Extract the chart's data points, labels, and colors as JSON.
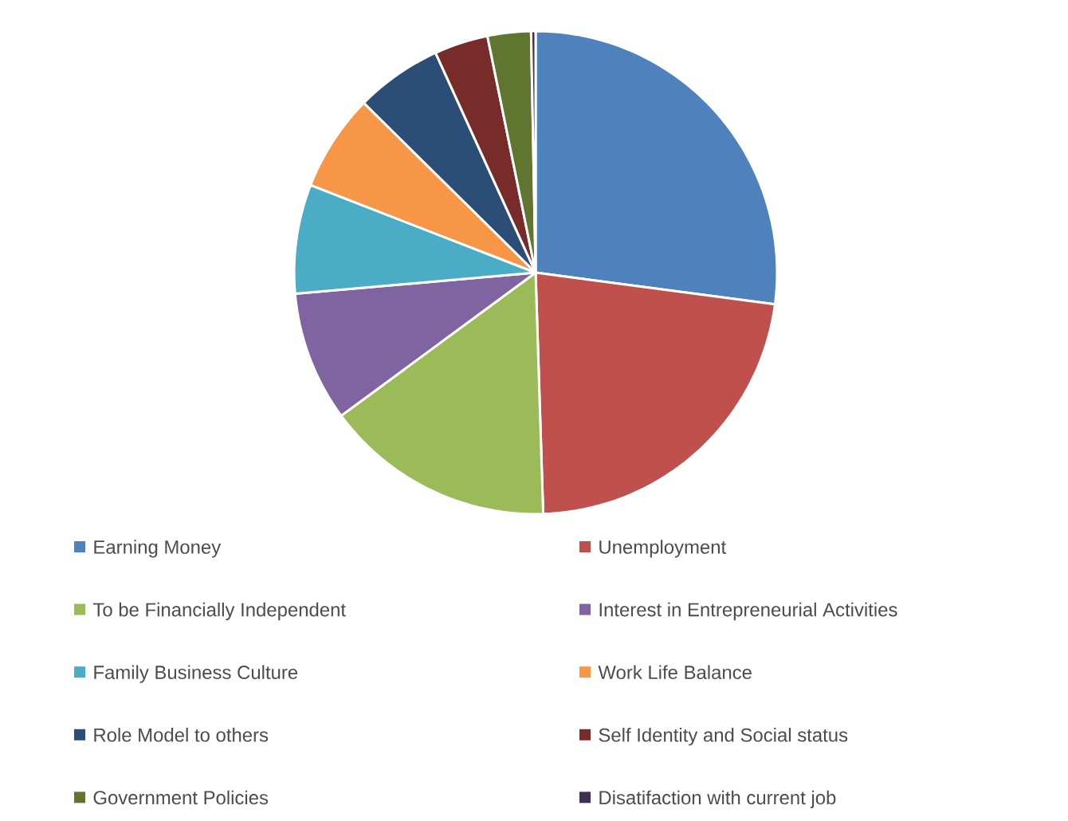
{
  "chart_data": {
    "type": "pie",
    "legend": "bottom",
    "categories": [
      "Earning Money",
      "Unemployment",
      "To be Financially Independent",
      "Interest in Entrepreneurial Activities",
      "Family Business Culture",
      "Work Life Balance",
      "Role Model to others",
      "Self Identity and Social status",
      "Government Policies",
      "Disatifaction with current job"
    ],
    "values": [
      27.1,
      22.4,
      15.4,
      8.7,
      7.3,
      6.5,
      5.8,
      3.6,
      2.9,
      0.3
    ],
    "colors": [
      "#4f81bd",
      "#c0504d",
      "#9bbb59",
      "#8064a2",
      "#4bacc6",
      "#f79646",
      "#2c4d75",
      "#772c2a",
      "#5f7530",
      "#403152"
    ]
  }
}
